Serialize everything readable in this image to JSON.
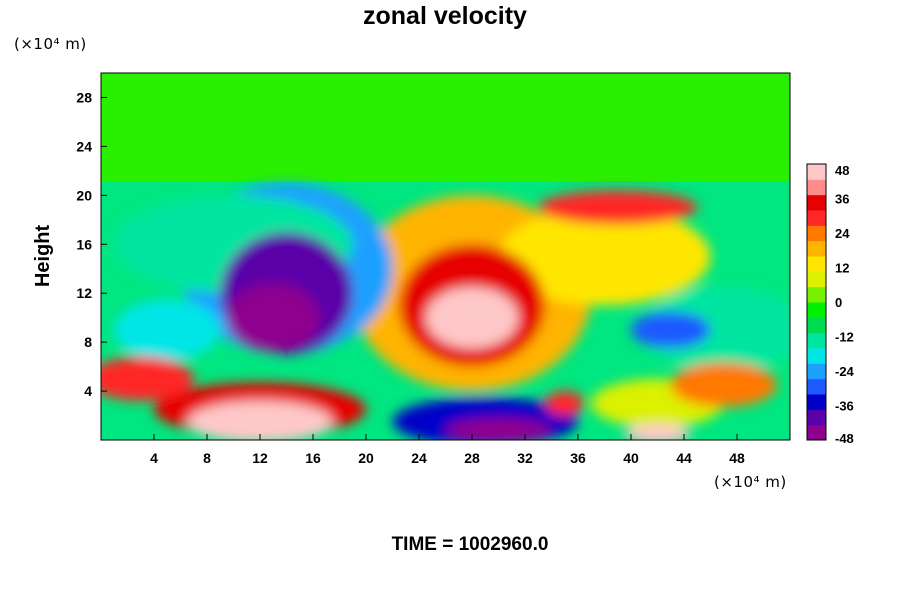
{
  "chart_data": {
    "type": "heatmap",
    "title": "zonal velocity",
    "ylabel": "Height",
    "y_unit": "(×10⁴ m)",
    "x_unit": "(×10⁴ m)",
    "footer": "TIME = 1002960.0",
    "xlim": [
      0,
      52
    ],
    "ylim": [
      0,
      30
    ],
    "x_ticks": [
      4,
      8,
      12,
      16,
      20,
      24,
      28,
      32,
      36,
      40,
      44,
      48
    ],
    "y_ticks": [
      4,
      8,
      12,
      16,
      20,
      24,
      28
    ],
    "colorbar": {
      "min": -48,
      "max": 48,
      "ticks": [
        48,
        36,
        24,
        12,
        0,
        -12,
        -24,
        -36,
        -48
      ],
      "palette": [
        "#8e008e",
        "#5a00a8",
        "#0000c8",
        "#1e5aff",
        "#1ea0ff",
        "#00e6e6",
        "#00e6a0",
        "#00dc50",
        "#00f000",
        "#78f000",
        "#dcf000",
        "#ffe600",
        "#ffb400",
        "#ff7800",
        "#ff2828",
        "#e60000",
        "#ff8c8c",
        "#ffc8c8"
      ]
    },
    "field_features": [
      {
        "kind": "background",
        "value": 0
      },
      {
        "kind": "blob",
        "x": 13,
        "y": 10,
        "rx": 3.5,
        "ry": 2.8,
        "value": -48
      },
      {
        "kind": "blob",
        "x": 14,
        "y": 12,
        "rx": 5,
        "ry": 5,
        "value": -38
      },
      {
        "kind": "blob",
        "x": 14,
        "y": 14,
        "rx": 8,
        "ry": 7,
        "value": -24
      },
      {
        "kind": "blob",
        "x": 10,
        "y": 16,
        "rx": 9,
        "ry": 4,
        "value": -14
      },
      {
        "kind": "blob",
        "x": 28,
        "y": 10,
        "rx": 3.5,
        "ry": 2.5,
        "value": 46
      },
      {
        "kind": "blob",
        "x": 28,
        "y": 11,
        "rx": 5.5,
        "ry": 5,
        "value": 36
      },
      {
        "kind": "blob",
        "x": 28,
        "y": 12,
        "rx": 9,
        "ry": 8,
        "value": 20
      },
      {
        "kind": "blob",
        "x": 38,
        "y": 15,
        "rx": 8,
        "ry": 4,
        "value": 12
      },
      {
        "kind": "blob",
        "x": 39,
        "y": 19,
        "rx": 6,
        "ry": 1.4,
        "value": 30
      },
      {
        "kind": "blob",
        "x": 12,
        "y": 1.5,
        "rx": 5.5,
        "ry": 1.7,
        "value": 48
      },
      {
        "kind": "blob",
        "x": 12,
        "y": 2.5,
        "rx": 8,
        "ry": 2.2,
        "value": 34
      },
      {
        "kind": "blob",
        "x": 3,
        "y": 5,
        "rx": 4,
        "ry": 1.8,
        "value": 30
      },
      {
        "kind": "blob",
        "x": 29,
        "y": 1.5,
        "rx": 7,
        "ry": 2,
        "value": -36
      },
      {
        "kind": "blob",
        "x": 30,
        "y": 0.8,
        "rx": 4,
        "ry": 1,
        "value": -48
      },
      {
        "kind": "blob",
        "x": 42,
        "y": 0.5,
        "rx": 2.5,
        "ry": 0.8,
        "value": 48
      },
      {
        "kind": "blob",
        "x": 42,
        "y": 3,
        "rx": 5,
        "ry": 2,
        "value": 10
      },
      {
        "kind": "blob",
        "x": 47,
        "y": 4.5,
        "rx": 4,
        "ry": 1.8,
        "value": 26
      },
      {
        "kind": "blob",
        "x": 47,
        "y": 9,
        "rx": 6,
        "ry": 3.5,
        "value": -14
      },
      {
        "kind": "blob",
        "x": 43,
        "y": 9,
        "rx": 3,
        "ry": 1.5,
        "value": -28
      },
      {
        "kind": "blob",
        "x": 5,
        "y": 9,
        "rx": 4,
        "ry": 2.5,
        "value": -18
      },
      {
        "kind": "blob",
        "x": 35,
        "y": 3,
        "rx": 1.5,
        "ry": 1,
        "value": 30
      }
    ]
  }
}
